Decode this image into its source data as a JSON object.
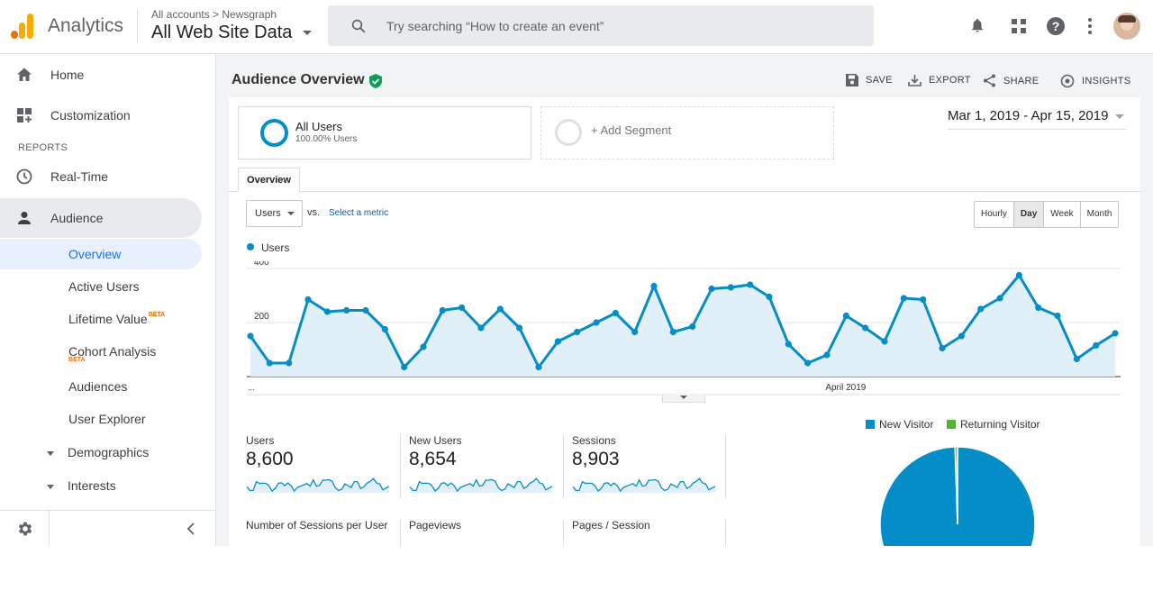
{
  "app": {
    "name": "Analytics"
  },
  "account": {
    "breadcrumb": "All accounts > Newsgraph",
    "view_name": "All Web Site Data"
  },
  "search": {
    "placeholder": "Try searching “How to create an event”"
  },
  "sidebar": {
    "home": "Home",
    "customization": "Customization",
    "reports_heading": "REPORTS",
    "realtime": "Real-Time",
    "audience": "Audience",
    "overview": "Overview",
    "active_users": "Active Users",
    "lifetime_value": "Lifetime Value",
    "lifetime_beta": "BETA",
    "cohort_analysis": "Cohort Analysis",
    "cohort_beta": "BETA",
    "audiences": "Audiences",
    "user_explorer": "User Explorer",
    "demographics": "Demographics",
    "interests": "Interests"
  },
  "header": {
    "title": "Audience Overview",
    "save": "SAVE",
    "export": "EXPORT",
    "share": "SHARE",
    "insights": "INSIGHTS"
  },
  "segments": {
    "active_name": "All Users",
    "active_pct": "100.00% Users",
    "add_label": "+ Add Segment"
  },
  "date_range": "Mar 1, 2019 - Apr 15, 2019",
  "tabs": {
    "overview": "Overview"
  },
  "controls": {
    "metric": "Users",
    "vs": "vs.",
    "select_metric": "Select a metric",
    "granularity": [
      "Hourly",
      "Day",
      "Week",
      "Month"
    ],
    "active_granularity": "Day"
  },
  "chart_data": {
    "type": "line",
    "series": [
      {
        "name": "Users",
        "color": "#058dc7",
        "values": [
          150,
          50,
          50,
          285,
          240,
          245,
          245,
          175,
          35,
          110,
          245,
          255,
          180,
          250,
          180,
          35,
          130,
          165,
          200,
          235,
          165,
          335,
          165,
          185,
          325,
          330,
          340,
          295,
          120,
          50,
          80,
          225,
          180,
          130,
          290,
          285,
          105,
          150,
          250,
          290,
          375,
          255,
          225,
          65,
          115,
          160
        ]
      }
    ],
    "y_ticks": [
      "400",
      "200"
    ],
    "x_labels": [
      "...",
      "April 2019"
    ],
    "ylim": [
      0,
      400
    ]
  },
  "kpis": [
    {
      "label": "Users",
      "value": "8,600"
    },
    {
      "label": "New Users",
      "value": "8,654"
    },
    {
      "label": "Sessions",
      "value": "8,903"
    },
    {
      "label": "Number of Sessions per User",
      "value": ""
    },
    {
      "label": "Pageviews",
      "value": ""
    },
    {
      "label": "Pages / Session",
      "value": ""
    }
  ],
  "pie": {
    "legend": [
      {
        "name": "New Visitor",
        "color": "#058dc7"
      },
      {
        "name": "Returning Visitor",
        "color": "#50b432"
      }
    ],
    "new_visitor_share": 0.995
  }
}
